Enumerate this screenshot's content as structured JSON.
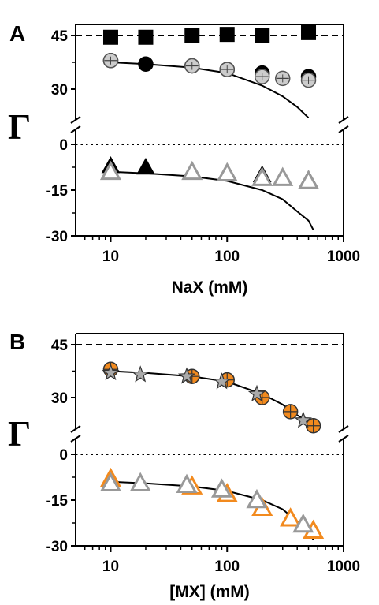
{
  "chart_data": [
    {
      "type": "scatter",
      "panel_label": "A",
      "xlabel": "NaX (mM)",
      "ylabel": "Γ",
      "x_scale": "log",
      "xlim": [
        5,
        1000
      ],
      "x_ticks": [
        10,
        100,
        1000
      ],
      "x_tick_labels": [
        "10",
        "100",
        "1000"
      ],
      "y_ticks": [
        45,
        30,
        0,
        -15,
        -30
      ],
      "y_tick_labels": [
        "45",
        "30",
        "0",
        "-15",
        "-30"
      ],
      "y_axis_break": true,
      "reference_lines": [
        {
          "y": 45,
          "style": "dashed"
        },
        {
          "y": 0,
          "style": "dotted"
        }
      ],
      "series": [
        {
          "marker": "square",
          "fill": "#000000",
          "stroke": "#000000",
          "x": [
            10,
            20,
            50,
            100,
            200,
            500
          ],
          "y": [
            44.5,
            44.5,
            45,
            45.3,
            45,
            45.8
          ]
        },
        {
          "marker": "circle",
          "fill": "#000000",
          "stroke": "#000000",
          "x": [
            10,
            20,
            50,
            100,
            200,
            500
          ],
          "y": [
            38,
            37,
            36.5,
            35.5,
            34.5,
            33.5
          ]
        },
        {
          "marker": "circle-half",
          "fill": "#cccccc",
          "stroke": "#555555",
          "x": [
            10,
            50,
            100,
            200,
            300,
            500
          ],
          "y": [
            38,
            36.5,
            35.5,
            33.5,
            33,
            32.5
          ]
        },
        {
          "marker": "triangle",
          "fill": "#000000",
          "stroke": "#000000",
          "x": [
            10,
            20,
            200,
            500
          ],
          "y": [
            -7,
            -7.5,
            -10,
            -11.5
          ]
        },
        {
          "marker": "triangle-open",
          "fill": "#ffffff",
          "stroke": "#999999",
          "x": [
            10,
            50,
            100,
            200,
            300,
            500
          ],
          "y": [
            -9,
            -9,
            -9.5,
            -11,
            -11,
            -12
          ]
        }
      ],
      "fit_curves": [
        {
          "x": [
            10,
            20,
            50,
            100,
            200,
            300,
            400,
            500
          ],
          "y": [
            37.5,
            37,
            36,
            34.5,
            31,
            28,
            25,
            22
          ]
        },
        {
          "x": [
            10,
            20,
            50,
            100,
            200,
            300,
            400,
            500,
            550
          ],
          "y": [
            -9,
            -9.5,
            -10.5,
            -12,
            -15,
            -18,
            -22,
            -25,
            -28
          ]
        }
      ]
    },
    {
      "type": "scatter",
      "panel_label": "B",
      "xlabel": "[MX] (mM)",
      "ylabel": "Γ",
      "x_scale": "log",
      "xlim": [
        5,
        1000
      ],
      "x_ticks": [
        10,
        100,
        1000
      ],
      "x_tick_labels": [
        "10",
        "100",
        "1000"
      ],
      "y_ticks": [
        45,
        30,
        0,
        -15,
        -30
      ],
      "y_tick_labels": [
        "45",
        "30",
        "0",
        "-15",
        "-30"
      ],
      "y_axis_break": true,
      "reference_lines": [
        {
          "y": 45,
          "style": "dashed"
        },
        {
          "y": 0,
          "style": "dotted"
        }
      ],
      "series": [
        {
          "marker": "circle-crossed",
          "fill": "#f28a1e",
          "stroke": "#333333",
          "x": [
            10,
            50,
            100,
            200,
            350,
            550
          ],
          "y": [
            38,
            36,
            35,
            30,
            26,
            22
          ]
        },
        {
          "marker": "star",
          "fill": "#aaaaaa",
          "stroke": "#333333",
          "x": [
            10,
            18,
            45,
            90,
            180,
            450
          ],
          "y": [
            37,
            36.5,
            36,
            34.5,
            31,
            23.5
          ]
        },
        {
          "marker": "triangle-open",
          "fill": "#ffffff",
          "stroke": "#f28a1e",
          "x": [
            10,
            50,
            100,
            200,
            350,
            550
          ],
          "y": [
            -8,
            -10.5,
            -13,
            -17.5,
            -21,
            -25
          ]
        },
        {
          "marker": "triangle-open",
          "fill": "#ffffff",
          "stroke": "#999999",
          "x": [
            10,
            18,
            45,
            90,
            180,
            450
          ],
          "y": [
            -9.5,
            -9.5,
            -10,
            -11.5,
            -15,
            -23
          ]
        }
      ],
      "fit_curves": [
        {
          "x": [
            10,
            20,
            50,
            100,
            200,
            300,
            400,
            500,
            550
          ],
          "y": [
            37.5,
            37,
            36,
            34.5,
            31,
            28,
            25,
            23,
            22
          ]
        },
        {
          "x": [
            10,
            20,
            50,
            100,
            200,
            300,
            400,
            500,
            550
          ],
          "y": [
            -9,
            -9.5,
            -10.5,
            -12,
            -15,
            -18,
            -22,
            -25,
            -28
          ]
        }
      ]
    }
  ]
}
